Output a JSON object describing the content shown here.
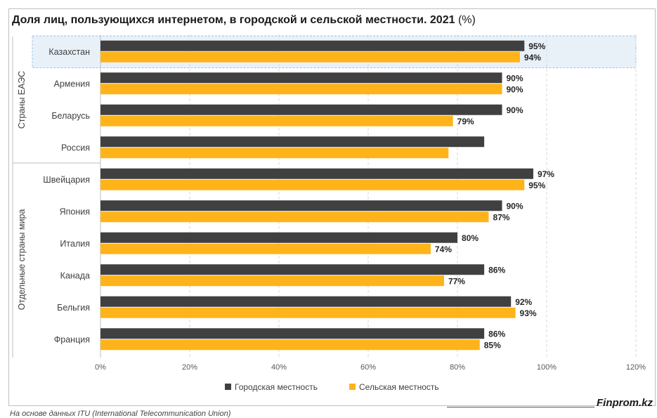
{
  "title": {
    "main": "Доля лиц, пользующихся интернетом, в городской и сельской местности. 2021",
    "unit": "(%)"
  },
  "source": "На основе данных ITU (International Telecommunication Union)",
  "brand": "Finprom.kz",
  "colors": {
    "urban": "#404040",
    "rural": "#ffb31a",
    "highlight_fill": "#e8f1f8",
    "highlight_border": "#9dc3e6",
    "grid": "#d9d9d9"
  },
  "chart_data": {
    "type": "bar",
    "orientation": "horizontal",
    "xlim": [
      0,
      120
    ],
    "x_ticks": [
      "0%",
      "20%",
      "40%",
      "60%",
      "80%",
      "100%",
      "120%"
    ],
    "grid": true,
    "legend_position": "bottom",
    "groups": [
      {
        "name": "Страны ЕАЭС",
        "categories": [
          "Казахстан",
          "Армения",
          "Беларусь",
          "Россия"
        ]
      },
      {
        "name": "Отдельные страны мира",
        "categories": [
          "Швейцария",
          "Япония",
          "Италия",
          "Канада",
          "Бельгия",
          "Франция"
        ]
      }
    ],
    "highlighted_category": "Казахстан",
    "categories": [
      "Казахстан",
      "Армения",
      "Беларусь",
      "Россия",
      "Швейцария",
      "Япония",
      "Италия",
      "Канада",
      "Бельгия",
      "Франция"
    ],
    "series": [
      {
        "name": "Городская местность",
        "values": [
          95,
          90,
          90,
          86,
          97,
          90,
          80,
          86,
          92,
          86
        ],
        "labels": [
          "95%",
          "90%",
          "90%",
          "",
          "97%",
          "90%",
          "80%",
          "86%",
          "92%",
          "86%"
        ]
      },
      {
        "name": "Сельская местность",
        "values": [
          94,
          90,
          79,
          78,
          95,
          87,
          74,
          77,
          93,
          85
        ],
        "labels": [
          "94%",
          "90%",
          "79%",
          "",
          "95%",
          "87%",
          "74%",
          "77%",
          "93%",
          "85%"
        ]
      }
    ]
  }
}
